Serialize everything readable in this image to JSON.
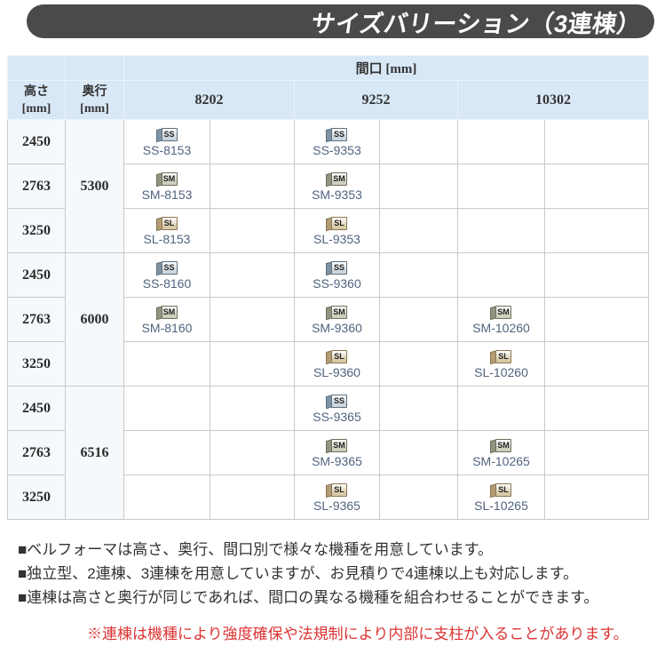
{
  "title": "サイズバリーション（3連棟）",
  "table": {
    "span_header": "間口 [mm]",
    "height_header": {
      "label": "高さ",
      "unit": "[mm]"
    },
    "depth_header": {
      "label": "奥行",
      "unit": "[mm]"
    },
    "width_columns": [
      "8202",
      "9252",
      "10302"
    ],
    "groups": [
      {
        "depth": "5300",
        "rows": [
          {
            "height": "2450",
            "cells": [
              {
                "type": "ss",
                "code": "SS-8153"
              },
              {
                "type": "ss",
                "code": "SS-9353"
              },
              null
            ]
          },
          {
            "height": "2763",
            "cells": [
              {
                "type": "sm",
                "code": "SM-8153"
              },
              {
                "type": "sm",
                "code": "SM-9353"
              },
              null
            ]
          },
          {
            "height": "3250",
            "cells": [
              {
                "type": "sl",
                "code": "SL-8153"
              },
              {
                "type": "sl",
                "code": "SL-9353"
              },
              null
            ]
          }
        ]
      },
      {
        "depth": "6000",
        "rows": [
          {
            "height": "2450",
            "cells": [
              {
                "type": "ss",
                "code": "SS-8160"
              },
              {
                "type": "ss",
                "code": "SS-9360"
              },
              null
            ]
          },
          {
            "height": "2763",
            "cells": [
              {
                "type": "sm",
                "code": "SM-8160"
              },
              {
                "type": "sm",
                "code": "SM-9360"
              },
              {
                "type": "sm",
                "code": "SM-10260"
              }
            ]
          },
          {
            "height": "3250",
            "cells": [
              null,
              {
                "type": "sl",
                "code": "SL-9360"
              },
              {
                "type": "sl",
                "code": "SL-10260"
              }
            ]
          }
        ]
      },
      {
        "depth": "6516",
        "rows": [
          {
            "height": "2450",
            "cells": [
              null,
              {
                "type": "ss",
                "code": "SS-9365"
              },
              null
            ]
          },
          {
            "height": "2763",
            "cells": [
              null,
              {
                "type": "sm",
                "code": "SM-9365"
              },
              {
                "type": "sm",
                "code": "SM-10265"
              }
            ]
          },
          {
            "height": "3250",
            "cells": [
              null,
              {
                "type": "sl",
                "code": "SL-9365"
              },
              {
                "type": "sl",
                "code": "SL-10265"
              }
            ]
          }
        ]
      }
    ]
  },
  "icons": {
    "ss": {
      "label": "SS",
      "body": "#ccd6dd",
      "flap": "#7e93a4",
      "edge": "#5d6f7d"
    },
    "sm": {
      "label": "SM",
      "body": "#cdd0bd",
      "flap": "#8f957e",
      "edge": "#6b705c"
    },
    "sl": {
      "label": "SL",
      "body": "#d9cba8",
      "flap": "#b19c76",
      "edge": "#8a7550"
    }
  },
  "notes": [
    "■ベルフォーマは高さ、奥行、間口別で様々な機種を用意しています。",
    "■独立型、2連棟、3連棟を用意していますが、お見積りで4連棟以上も対応します。",
    "■連棟は高さと奥行が同じであれば、間口の異なる機種を組合わせることができます。"
  ],
  "warning": "※連棟は機種により強度確保や法規制により内部に支柱が入ることがあります。",
  "colors": {
    "title_bar": "#4a4a4a",
    "title_text": "#ffffff",
    "header_bg": "#d9e8f6",
    "axis_cell_bg": "#f5f9fc",
    "grid_line": "#c9c9c9",
    "code_text": "#51647f",
    "note_text": "#333333",
    "warning_text": "#dd3333"
  }
}
